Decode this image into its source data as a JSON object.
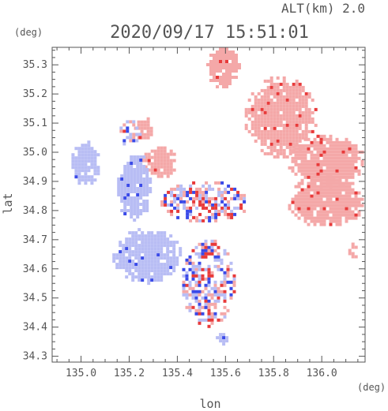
{
  "chart_data": {
    "type": "heatmap",
    "title": "2020/09/17 15:51:01",
    "subtitle": "ALT(km) 2.0",
    "xlabel": "lon",
    "ylabel": "lat",
    "x_unit": "(deg)",
    "y_unit": "(deg)",
    "xlim": [
      134.88,
      136.18
    ],
    "ylim": [
      34.28,
      35.36
    ],
    "x_ticks": [
      135.0,
      135.2,
      135.4,
      135.6,
      135.8,
      136.0
    ],
    "x_tick_labels": [
      "135.0",
      "135.2",
      "135.4",
      "135.6",
      "135.8",
      "136.0"
    ],
    "y_ticks": [
      34.3,
      34.4,
      34.5,
      34.6,
      34.7,
      34.8,
      34.9,
      35.0,
      35.1,
      35.2,
      35.3
    ],
    "y_tick_labels": [
      "34.3",
      "34.4",
      "34.5",
      "34.6",
      "34.7",
      "34.8",
      "34.9",
      "35.0",
      "35.1",
      "35.2",
      "35.3"
    ],
    "grid": false,
    "legend": "none",
    "colors": {
      "positive": "#f4a8a8",
      "positive_strong": "#e83a3a",
      "negative": "#b8bdf4",
      "negative_strong": "#3a4ae8",
      "axis": "#555555"
    },
    "regions": [
      {
        "sign": "positive",
        "lon": [
          135.52,
          135.66
        ],
        "lat": [
          35.22,
          35.36
        ]
      },
      {
        "sign": "positive",
        "lon": [
          135.68,
          135.98
        ],
        "lat": [
          34.98,
          35.26
        ]
      },
      {
        "sign": "positive",
        "lon": [
          135.86,
          136.18
        ],
        "lat": [
          34.88,
          35.06
        ]
      },
      {
        "sign": "positive",
        "lon": [
          135.86,
          136.18
        ],
        "lat": [
          34.74,
          34.92
        ]
      },
      {
        "sign": "positive",
        "lon": [
          135.25,
          135.4
        ],
        "lat": [
          34.91,
          35.02
        ]
      },
      {
        "sign": "positive",
        "lon": [
          135.22,
          135.3
        ],
        "lat": [
          35.04,
          35.12
        ]
      },
      {
        "sign": "positive",
        "lon": [
          136.11,
          136.15
        ],
        "lat": [
          34.63,
          34.69
        ]
      },
      {
        "sign": "negative",
        "lon": [
          134.96,
          135.08
        ],
        "lat": [
          34.88,
          35.04
        ]
      },
      {
        "sign": "negative",
        "lon": [
          135.15,
          135.3
        ],
        "lat": [
          34.76,
          35.0
        ]
      },
      {
        "sign": "negative",
        "lon": [
          135.13,
          135.42
        ],
        "lat": [
          34.55,
          34.74
        ]
      },
      {
        "sign": "mixed",
        "lon": [
          135.42,
          135.64
        ],
        "lat": [
          34.4,
          34.7
        ]
      },
      {
        "sign": "mixed",
        "lon": [
          135.33,
          135.7
        ],
        "lat": [
          34.76,
          34.9
        ]
      },
      {
        "sign": "mixed",
        "lon": [
          135.16,
          135.25
        ],
        "lat": [
          35.02,
          35.11
        ]
      },
      {
        "sign": "negative",
        "lon": [
          135.56,
          135.62
        ],
        "lat": [
          34.34,
          34.38
        ]
      }
    ]
  }
}
